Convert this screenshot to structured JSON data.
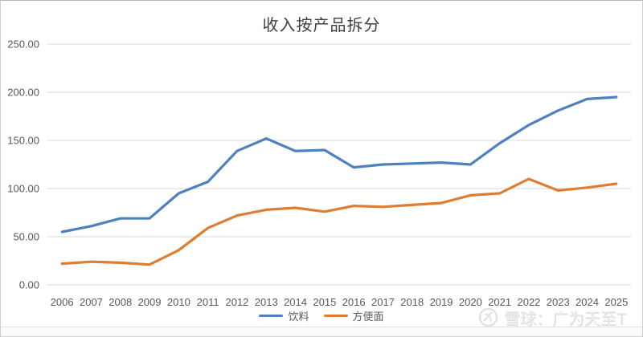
{
  "title": "收入按产品拆分",
  "watermark": {
    "logo": "xueqiu-snowball-icon",
    "text": "雪球：广为天至T"
  },
  "axes": {
    "ytick_labels": [
      "0.00",
      "50.00",
      "100.00",
      "150.00",
      "200.00",
      "250.00"
    ]
  },
  "chart_data": {
    "type": "line",
    "title": "收入按产品拆分",
    "x": [
      "2006",
      "2007",
      "2008",
      "2009",
      "2010",
      "2011",
      "2012",
      "2013",
      "2014",
      "2015",
      "2016",
      "2017",
      "2018",
      "2019",
      "2020",
      "2021",
      "2022",
      "2023",
      "2024",
      "2025"
    ],
    "series": [
      {
        "name": "饮料",
        "color": "#4e81bd",
        "values": [
          55,
          61,
          69,
          69,
          95,
          107,
          139,
          152,
          139,
          140,
          122,
          125,
          126,
          127,
          125,
          147,
          166,
          181,
          193,
          195
        ]
      },
      {
        "name": "方便面",
        "color": "#dd7e32",
        "values": [
          22,
          24,
          23,
          21,
          36,
          59,
          72,
          78,
          80,
          76,
          82,
          81,
          83,
          85,
          93,
          95,
          110,
          98,
          101,
          105
        ]
      }
    ],
    "xlabel": "",
    "ylabel": "",
    "ylim": [
      0,
      250
    ],
    "ytick_step": 50,
    "ytick_format": "two-decimals",
    "grid": true,
    "grid_color": "#d9d9d9",
    "legend_position": "bottom-center"
  }
}
